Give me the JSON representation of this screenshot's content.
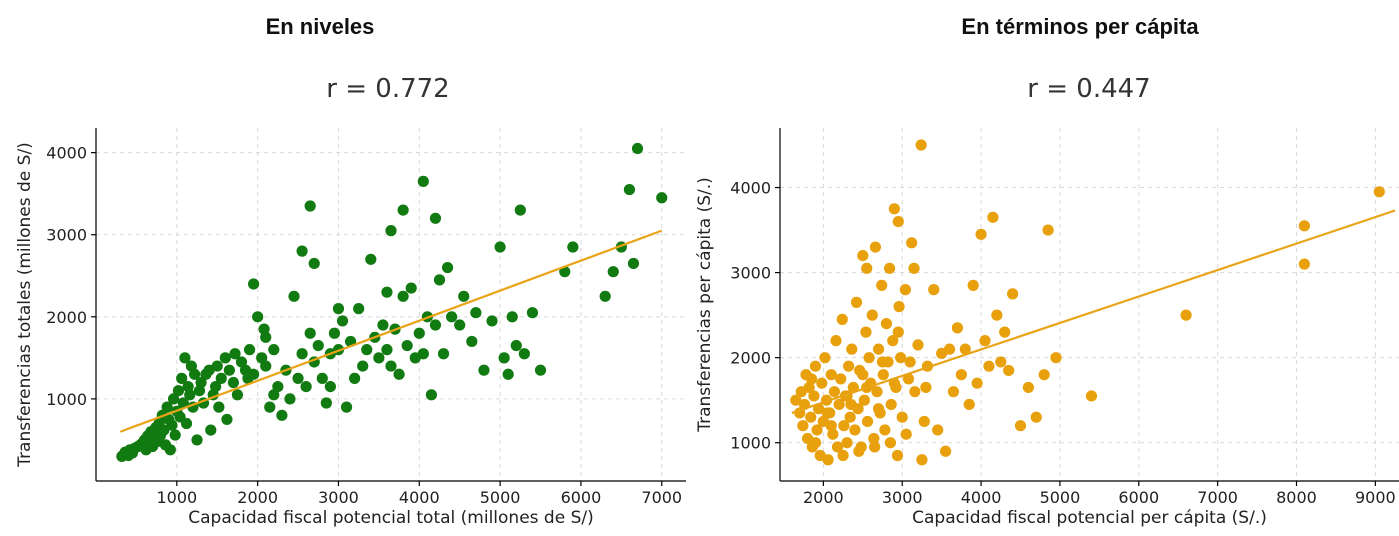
{
  "panels": [
    {
      "title": "En niveles"
    },
    {
      "title": "En términos per cápita"
    }
  ],
  "chart_data": [
    {
      "type": "scatter",
      "title": "r = 0.772",
      "xlabel": "Capacidad fiscal potencial total (millones de S/)",
      "ylabel": "Transferencias totales (millones de S/)",
      "xlim": [
        0,
        7300
      ],
      "ylim": [
        0,
        4300
      ],
      "xticks": [
        1000,
        2000,
        3000,
        4000,
        5000,
        6000,
        7000
      ],
      "yticks": [
        1000,
        2000,
        3000,
        4000
      ],
      "grid": true,
      "point_color": "#117a11",
      "line_color": "#e8a317",
      "regression": {
        "x": [
          300,
          7000
        ],
        "y": [
          600,
          3050
        ]
      },
      "points": [
        [
          320,
          300
        ],
        [
          360,
          350
        ],
        [
          400,
          310
        ],
        [
          420,
          380
        ],
        [
          450,
          340
        ],
        [
          480,
          400
        ],
        [
          520,
          420
        ],
        [
          560,
          450
        ],
        [
          600,
          500
        ],
        [
          620,
          380
        ],
        [
          640,
          550
        ],
        [
          660,
          470
        ],
        [
          680,
          600
        ],
        [
          700,
          420
        ],
        [
          720,
          520
        ],
        [
          740,
          650
        ],
        [
          760,
          480
        ],
        [
          780,
          700
        ],
        [
          800,
          560
        ],
        [
          820,
          800
        ],
        [
          840,
          620
        ],
        [
          860,
          440
        ],
        [
          880,
          900
        ],
        [
          900,
          750
        ],
        [
          920,
          380
        ],
        [
          940,
          680
        ],
        [
          960,
          1000
        ],
        [
          980,
          560
        ],
        [
          1000,
          850
        ],
        [
          1020,
          1100
        ],
        [
          1040,
          780
        ],
        [
          1060,
          1250
        ],
        [
          1080,
          950
        ],
        [
          1100,
          1500
        ],
        [
          1120,
          700
        ],
        [
          1140,
          1150
        ],
        [
          1160,
          1050
        ],
        [
          1180,
          1400
        ],
        [
          1200,
          900
        ],
        [
          1220,
          1300
        ],
        [
          1250,
          500
        ],
        [
          1280,
          1100
        ],
        [
          1300,
          1200
        ],
        [
          1330,
          950
        ],
        [
          1360,
          1300
        ],
        [
          1400,
          1350
        ],
        [
          1420,
          620
        ],
        [
          1450,
          1050
        ],
        [
          1480,
          1150
        ],
        [
          1500,
          1400
        ],
        [
          1520,
          900
        ],
        [
          1550,
          1250
        ],
        [
          1600,
          1500
        ],
        [
          1620,
          750
        ],
        [
          1650,
          1350
        ],
        [
          1700,
          1200
        ],
        [
          1720,
          1550
        ],
        [
          1750,
          1050
        ],
        [
          1800,
          1450
        ],
        [
          1850,
          1350
        ],
        [
          1880,
          1250
        ],
        [
          1900,
          1600
        ],
        [
          1950,
          1300
        ],
        [
          2000,
          2000
        ],
        [
          2050,
          1500
        ],
        [
          2080,
          1850
        ],
        [
          2100,
          1400
        ],
        [
          2150,
          900
        ],
        [
          2200,
          1600
        ],
        [
          2250,
          1150
        ],
        [
          2300,
          800
        ],
        [
          2350,
          1350
        ],
        [
          2400,
          1000
        ],
        [
          2450,
          2250
        ],
        [
          2500,
          1250
        ],
        [
          2550,
          1550
        ],
        [
          2600,
          1150
        ],
        [
          2650,
          1800
        ],
        [
          2700,
          1450
        ],
        [
          2750,
          1650
        ],
        [
          2800,
          1250
        ],
        [
          2850,
          950
        ],
        [
          2900,
          1550
        ],
        [
          2950,
          1800
        ],
        [
          3000,
          1600
        ],
        [
          3050,
          1950
        ],
        [
          3100,
          900
        ],
        [
          3150,
          1700
        ],
        [
          3200,
          1250
        ],
        [
          3250,
          2100
        ],
        [
          3300,
          1400
        ],
        [
          3350,
          1600
        ],
        [
          3400,
          2700
        ],
        [
          3450,
          1750
        ],
        [
          3500,
          1500
        ],
        [
          3550,
          1900
        ],
        [
          3600,
          1600
        ],
        [
          3650,
          1400
        ],
        [
          3700,
          1850
        ],
        [
          3750,
          1300
        ],
        [
          3800,
          2250
        ],
        [
          3850,
          1650
        ],
        [
          3900,
          2350
        ],
        [
          3950,
          1500
        ],
        [
          4000,
          1800
        ],
        [
          4050,
          1550
        ],
        [
          4100,
          2000
        ],
        [
          4150,
          1050
        ],
        [
          4200,
          1900
        ],
        [
          4250,
          2450
        ],
        [
          4300,
          1550
        ],
        [
          4400,
          2000
        ],
        [
          4500,
          1900
        ],
        [
          4550,
          2250
        ],
        [
          4650,
          1700
        ],
        [
          4700,
          2050
        ],
        [
          4800,
          1350
        ],
        [
          4900,
          1950
        ],
        [
          5000,
          2850
        ],
        [
          5050,
          1500
        ],
        [
          5100,
          1300
        ],
        [
          5150,
          2000
        ],
        [
          5200,
          1650
        ],
        [
          5300,
          1550
        ],
        [
          5400,
          2050
        ],
        [
          5500,
          1350
        ],
        [
          5800,
          2550
        ],
        [
          5900,
          2850
        ],
        [
          6300,
          2250
        ],
        [
          6400,
          2550
        ],
        [
          6500,
          2850
        ],
        [
          6600,
          3550
        ],
        [
          6650,
          2650
        ],
        [
          6700,
          4050
        ],
        [
          7000,
          3450
        ],
        [
          2650,
          3350
        ],
        [
          3650,
          3050
        ],
        [
          3800,
          3300
        ],
        [
          4050,
          3650
        ],
        [
          4200,
          3200
        ],
        [
          2550,
          2800
        ],
        [
          2700,
          2650
        ],
        [
          1950,
          2400
        ],
        [
          5250,
          3300
        ],
        [
          2100,
          1750
        ],
        [
          3000,
          2100
        ],
        [
          3600,
          2300
        ],
        [
          4350,
          2600
        ],
        [
          2200,
          1050
        ],
        [
          2900,
          1150
        ]
      ]
    },
    {
      "type": "scatter",
      "title": "r = 0.447",
      "xlabel": "Capacidad fiscal potencial per cápita (S/.)",
      "ylabel": "Transferencias per cápita (S/.)",
      "xlim": [
        1450,
        9300
      ],
      "ylim": [
        550,
        4700
      ],
      "xticks": [
        2000,
        3000,
        4000,
        5000,
        6000,
        7000,
        8000,
        9000
      ],
      "yticks": [
        1000,
        2000,
        3000,
        4000
      ],
      "grid": true,
      "point_color": "#e8a00c",
      "line_color": "#e8a317",
      "regression": {
        "x": [
          1600,
          9250
        ],
        "y": [
          1350,
          3730
        ]
      },
      "points": [
        [
          1650,
          1500
        ],
        [
          1700,
          1350
        ],
        [
          1720,
          1600
        ],
        [
          1740,
          1200
        ],
        [
          1760,
          1450
        ],
        [
          1780,
          1800
        ],
        [
          1800,
          1050
        ],
        [
          1820,
          1650
        ],
        [
          1840,
          1300
        ],
        [
          1860,
          950
        ],
        [
          1880,
          1550
        ],
        [
          1900,
          1900
        ],
        [
          1920,
          1150
        ],
        [
          1940,
          1400
        ],
        [
          1960,
          850
        ],
        [
          1980,
          1700
        ],
        [
          2000,
          1250
        ],
        [
          2020,
          2000
        ],
        [
          2040,
          1500
        ],
        [
          2060,
          800
        ],
        [
          2080,
          1350
        ],
        [
          2100,
          1800
        ],
        [
          2120,
          1100
        ],
        [
          2140,
          1600
        ],
        [
          2160,
          2200
        ],
        [
          2180,
          950
        ],
        [
          2200,
          1450
        ],
        [
          2220,
          1750
        ],
        [
          2240,
          2450
        ],
        [
          2260,
          1200
        ],
        [
          2280,
          1550
        ],
        [
          2300,
          1000
        ],
        [
          2320,
          1900
        ],
        [
          2340,
          1300
        ],
        [
          2360,
          2100
        ],
        [
          2380,
          1650
        ],
        [
          2400,
          1150
        ],
        [
          2420,
          2650
        ],
        [
          2440,
          1400
        ],
        [
          2460,
          1850
        ],
        [
          2480,
          950
        ],
        [
          2500,
          3200
        ],
        [
          2520,
          1500
        ],
        [
          2540,
          2300
        ],
        [
          2560,
          1250
        ],
        [
          2580,
          2000
        ],
        [
          2600,
          1700
        ],
        [
          2620,
          2500
        ],
        [
          2640,
          1050
        ],
        [
          2660,
          3300
        ],
        [
          2680,
          1600
        ],
        [
          2700,
          2100
        ],
        [
          2720,
          1350
        ],
        [
          2740,
          2850
        ],
        [
          2760,
          1800
        ],
        [
          2780,
          1150
        ],
        [
          2800,
          2400
        ],
        [
          2820,
          1950
        ],
        [
          2840,
          3050
        ],
        [
          2860,
          1450
        ],
        [
          2880,
          2200
        ],
        [
          2900,
          3750
        ],
        [
          2920,
          1650
        ],
        [
          2940,
          850
        ],
        [
          2960,
          2600
        ],
        [
          2980,
          2000
        ],
        [
          3000,
          1300
        ],
        [
          3040,
          2800
        ],
        [
          3080,
          1750
        ],
        [
          3120,
          3350
        ],
        [
          3160,
          1600
        ],
        [
          3200,
          2150
        ],
        [
          3240,
          4500
        ],
        [
          3280,
          1250
        ],
        [
          3320,
          1900
        ],
        [
          3400,
          2800
        ],
        [
          3450,
          1150
        ],
        [
          3500,
          2050
        ],
        [
          3550,
          900
        ],
        [
          3600,
          2100
        ],
        [
          3650,
          1600
        ],
        [
          3700,
          2350
        ],
        [
          3750,
          1800
        ],
        [
          3800,
          2100
        ],
        [
          3850,
          1450
        ],
        [
          3900,
          2850
        ],
        [
          3950,
          1700
        ],
        [
          4000,
          3450
        ],
        [
          4050,
          2200
        ],
        [
          4100,
          1900
        ],
        [
          4150,
          3650
        ],
        [
          4200,
          2500
        ],
        [
          4250,
          1950
        ],
        [
          4300,
          2300
        ],
        [
          4350,
          1850
        ],
        [
          4400,
          2750
        ],
        [
          4500,
          1200
        ],
        [
          4600,
          1650
        ],
        [
          4700,
          1300
        ],
        [
          4800,
          1800
        ],
        [
          4850,
          3500
        ],
        [
          4950,
          2000
        ],
        [
          5400,
          1550
        ],
        [
          6600,
          2500
        ],
        [
          8100,
          3550
        ],
        [
          8100,
          3100
        ],
        [
          9050,
          3950
        ],
        [
          2950,
          3600
        ],
        [
          3150,
          3050
        ],
        [
          2550,
          3050
        ],
        [
          1900,
          1000
        ],
        [
          2100,
          1200
        ],
        [
          2300,
          1550
        ],
        [
          2500,
          1800
        ],
        [
          2700,
          1400
        ],
        [
          2900,
          1700
        ],
        [
          3100,
          1950
        ],
        [
          3300,
          1650
        ],
        [
          2250,
          850
        ],
        [
          2450,
          900
        ],
        [
          2650,
          950
        ],
        [
          2850,
          1000
        ],
        [
          3050,
          1100
        ],
        [
          3250,
          800
        ],
        [
          1850,
          1750
        ],
        [
          2050,
          1350
        ],
        [
          2350,
          1450
        ],
        [
          2550,
          1650
        ],
        [
          2750,
          1950
        ],
        [
          2950,
          2300
        ]
      ]
    }
  ]
}
